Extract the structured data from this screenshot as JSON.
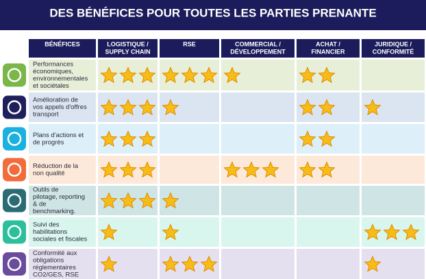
{
  "header": {
    "title": "DES BÉNÉFICES POUR TOUTES LES PARTIES PRENANTE"
  },
  "table": {
    "columns": [
      [
        "BÉNÉFICES"
      ],
      [
        "LOGISTIQUE /",
        "SUPPLY CHAIN"
      ],
      [
        "RSE"
      ],
      [
        "COMMERCIAL /",
        "DÉVELOPPEMENT"
      ],
      [
        "ACHAT /",
        "FINANCIER"
      ],
      [
        "JURIDIQUE /",
        "CONFORMITÉ"
      ]
    ],
    "rows": [
      {
        "label": [
          "Performances",
          "économiques,",
          "environnementales",
          "et sociétales"
        ],
        "stars": [
          3,
          3,
          1,
          2,
          0
        ]
      },
      {
        "label": [
          "Amélioration de",
          "vos appels d'offres",
          "transport"
        ],
        "stars": [
          3,
          1,
          0,
          2,
          1
        ]
      },
      {
        "label": [
          "Plans d'actions et",
          "de progrès"
        ],
        "stars": [
          3,
          0,
          0,
          2,
          0
        ]
      },
      {
        "label": [
          "Réduction de la",
          "non qualité"
        ],
        "stars": [
          3,
          0,
          3,
          2,
          0
        ]
      },
      {
        "label": [
          "Outils de",
          "pilotage, reporting",
          "& de",
          "benchmarking."
        ],
        "stars": [
          3,
          1,
          0,
          0,
          0
        ]
      },
      {
        "label": [
          "Suivi des",
          "habilitations",
          "sociales et fiscales"
        ],
        "stars": [
          1,
          1,
          0,
          0,
          3
        ]
      },
      {
        "label": [
          "Conformité aux",
          "obligations",
          "réglementaires",
          "CO2/GES, RSE"
        ],
        "stars": [
          1,
          3,
          0,
          0,
          1
        ]
      }
    ]
  }
}
